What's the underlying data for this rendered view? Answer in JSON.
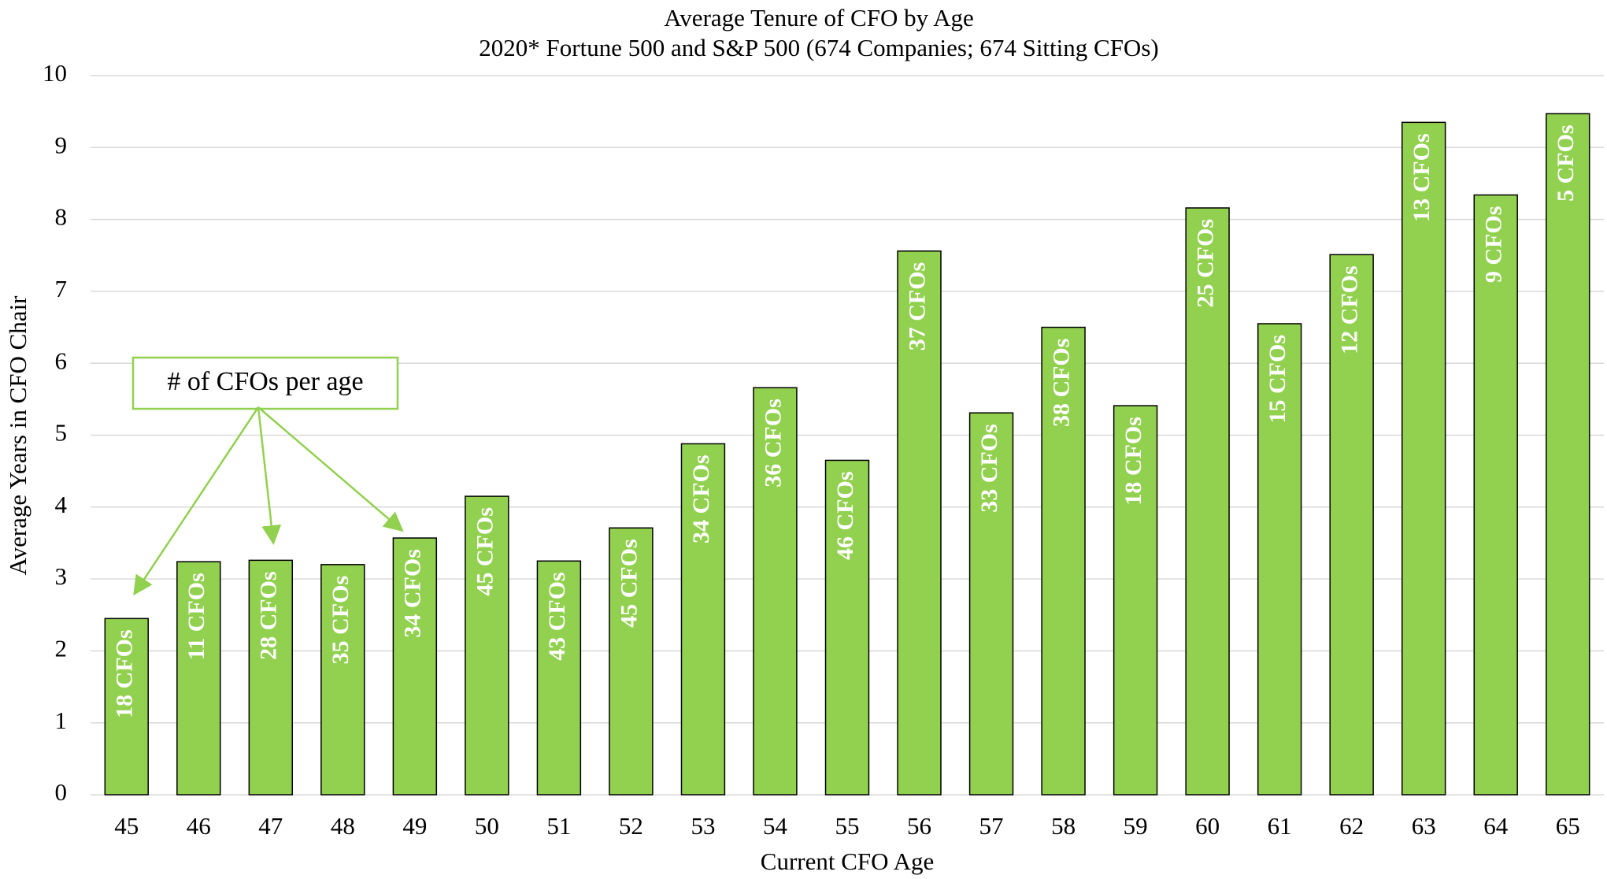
{
  "chart_data": {
    "type": "bar",
    "title": "Average Tenure of CFO by Age",
    "subtitle": "2020* Fortune 500 and S&P 500 (674 Companies; 674 Sitting CFOs)",
    "x_label": "Current CFO Age",
    "y_label": "Average Years in CFO Chair",
    "annotation": "# of CFOs per age",
    "categories": [
      "45",
      "46",
      "47",
      "48",
      "49",
      "50",
      "51",
      "52",
      "53",
      "54",
      "55",
      "56",
      "57",
      "58",
      "59",
      "60",
      "61",
      "62",
      "63",
      "64",
      "65"
    ],
    "values": [
      2.45,
      3.24,
      3.26,
      3.2,
      3.57,
      4.15,
      3.25,
      3.71,
      4.88,
      5.66,
      4.65,
      7.56,
      5.31,
      6.5,
      5.41,
      8.16,
      6.55,
      7.51,
      9.35,
      8.34,
      9.47
    ],
    "bar_labels": [
      "18 CFOs",
      "11 CFOs",
      "28 CFOs",
      "35 CFOs",
      "34 CFOs",
      "45 CFOs",
      "43 CFOs",
      "45 CFOs",
      "34 CFOs",
      "36 CFOs",
      "46 CFOs",
      "37 CFOs",
      "33 CFOs",
      "38 CFOs",
      "18 CFOs",
      "25 CFOs",
      "15 CFOs",
      "12 CFOs",
      "13 CFOs",
      "9 CFOs",
      "5 CFOs"
    ],
    "color": "#92d050",
    "ylim": [
      0,
      10
    ],
    "yticks": [
      0,
      1,
      2,
      3,
      4,
      5,
      6,
      7,
      8,
      9,
      10
    ],
    "grid": true
  }
}
